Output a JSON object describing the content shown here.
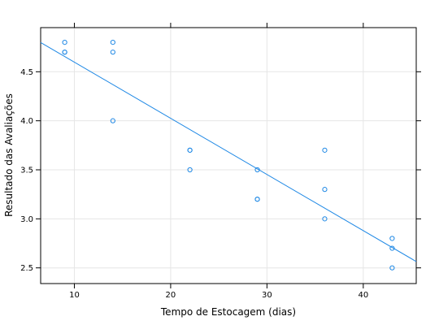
{
  "chart_data": {
    "type": "scatter",
    "title": "",
    "xlabel": "Tempo de Estocagem (dias)",
    "ylabel": "Resultado das Avaliações",
    "xlim": [
      6.5,
      45.5
    ],
    "ylim": [
      2.34,
      4.95
    ],
    "x_ticks": [
      10,
      20,
      30,
      40
    ],
    "y_ticks": [
      2.5,
      3.0,
      3.5,
      4.0,
      4.5
    ],
    "x_tick_labels": [
      "10",
      "20",
      "30",
      "40"
    ],
    "y_tick_labels": [
      "2.5",
      "3.0",
      "3.5",
      "4.0",
      "4.5"
    ],
    "grid": true,
    "legend": "none",
    "point_color": "#1E88E5",
    "line_color": "#1E88E5",
    "points": [
      {
        "x": 9,
        "y": 4.8
      },
      {
        "x": 9,
        "y": 4.7
      },
      {
        "x": 9,
        "y": 4.7
      },
      {
        "x": 14,
        "y": 4.8
      },
      {
        "x": 14,
        "y": 4.7
      },
      {
        "x": 14,
        "y": 4.0
      },
      {
        "x": 22,
        "y": 3.7
      },
      {
        "x": 22,
        "y": 3.7
      },
      {
        "x": 22,
        "y": 3.5
      },
      {
        "x": 29,
        "y": 3.5
      },
      {
        "x": 29,
        "y": 3.2
      },
      {
        "x": 29,
        "y": 3.2
      },
      {
        "x": 36,
        "y": 3.7
      },
      {
        "x": 36,
        "y": 3.3
      },
      {
        "x": 36,
        "y": 3.0
      },
      {
        "x": 43,
        "y": 2.8
      },
      {
        "x": 43,
        "y": 2.7
      },
      {
        "x": 43,
        "y": 2.5
      }
    ],
    "fit_line": {
      "intercept": 5.1709,
      "slope": -0.05728
    }
  }
}
